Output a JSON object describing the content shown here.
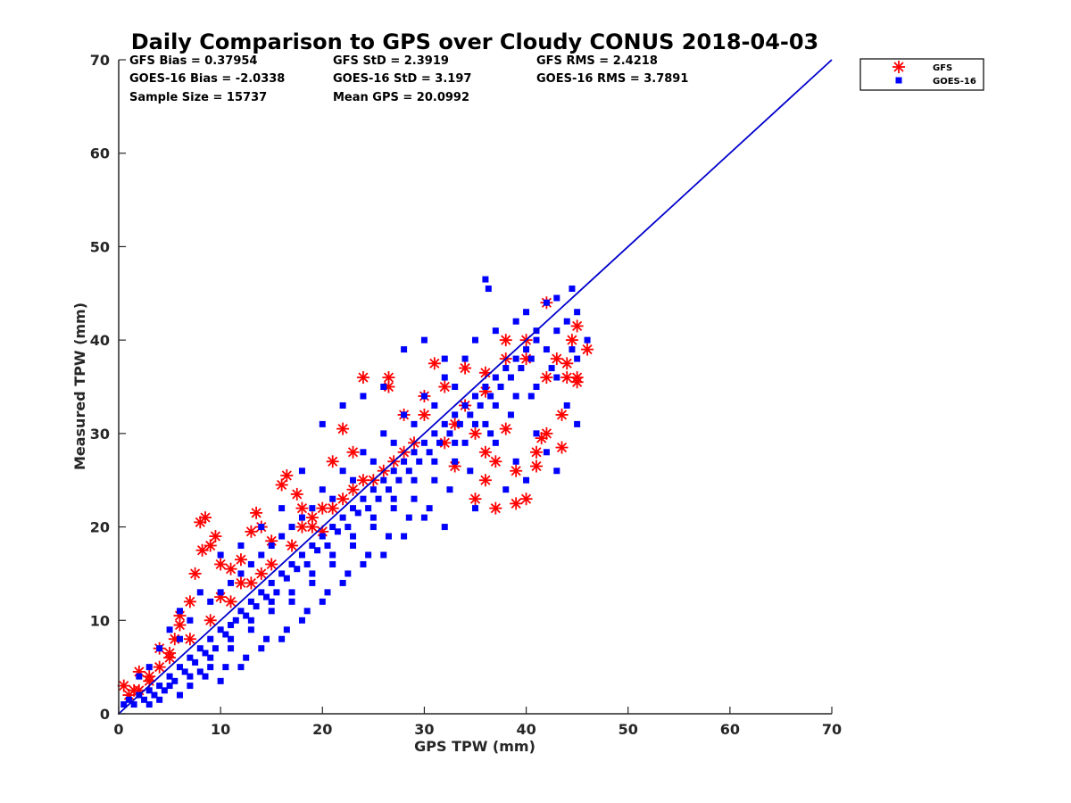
{
  "chart_data": {
    "type": "scatter",
    "title": "Daily Comparison to GPS over Cloudy CONUS 2018-04-03",
    "xlabel": "GPS TPW (mm)",
    "ylabel": "Measured TPW (mm)",
    "xlim": [
      0,
      70
    ],
    "ylim": [
      0,
      70
    ],
    "xticks": [
      "0",
      "10",
      "20",
      "30",
      "40",
      "50",
      "60",
      "70"
    ],
    "yticks": [
      "0",
      "10",
      "20",
      "30",
      "40",
      "50",
      "60",
      "70"
    ],
    "grid": false,
    "legend_position": "outside top-right",
    "stats": [
      [
        "GFS Bias = 0.37954",
        "GFS StD = 2.3919",
        "GFS RMS = 2.4218"
      ],
      [
        "GOES-16 Bias = -2.0338",
        "GOES-16 StD = 3.197",
        "GOES-16 RMS = 3.7891"
      ],
      [
        "Sample Size = 15737",
        "Mean GPS = 20.0992",
        ""
      ]
    ],
    "reference_line": {
      "x": [
        0,
        70
      ],
      "y": [
        0,
        70
      ],
      "color": "#0000cc"
    },
    "series": [
      {
        "name": "GFS",
        "marker": "asterisk",
        "color": "#ff0000",
        "points": [
          [
            0.5,
            3
          ],
          [
            1.5,
            2.5
          ],
          [
            2,
            4.5
          ],
          [
            3,
            3.5
          ],
          [
            4,
            5
          ],
          [
            5,
            6.5
          ],
          [
            5.5,
            8
          ],
          [
            6,
            9.5
          ],
          [
            7,
            12
          ],
          [
            7.5,
            15
          ],
          [
            8,
            20.5
          ],
          [
            8.5,
            21
          ],
          [
            9,
            18
          ],
          [
            8.2,
            17.5
          ],
          [
            9.5,
            19
          ],
          [
            10,
            16
          ],
          [
            11,
            15.5
          ],
          [
            12,
            16.5
          ],
          [
            13,
            19.5
          ],
          [
            13.5,
            21.5
          ],
          [
            14,
            20
          ],
          [
            15,
            18.5
          ],
          [
            16,
            24.5
          ],
          [
            16.5,
            25.5
          ],
          [
            17.5,
            23.5
          ],
          [
            18,
            22
          ],
          [
            19,
            21
          ],
          [
            20,
            19.5
          ],
          [
            22,
            30.5
          ],
          [
            21,
            27
          ],
          [
            23,
            28
          ],
          [
            24,
            36
          ],
          [
            26.5,
            36
          ],
          [
            26.5,
            35
          ],
          [
            28,
            32
          ],
          [
            31,
            37.5
          ],
          [
            30,
            34
          ],
          [
            32,
            29
          ],
          [
            34,
            33
          ],
          [
            35,
            30
          ],
          [
            36,
            28
          ],
          [
            36,
            25
          ],
          [
            37,
            22
          ],
          [
            38,
            30.5
          ],
          [
            39,
            26
          ],
          [
            40,
            23
          ],
          [
            41,
            28
          ],
          [
            41.5,
            29.5
          ],
          [
            42,
            30
          ],
          [
            43,
            38
          ],
          [
            44,
            36
          ],
          [
            44.5,
            40
          ],
          [
            45,
            36
          ],
          [
            45,
            35.5
          ],
          [
            46,
            39
          ],
          [
            45,
            41.5
          ],
          [
            43.5,
            28.5
          ],
          [
            43.5,
            32
          ],
          [
            42,
            44
          ],
          [
            40,
            40
          ],
          [
            38,
            38
          ],
          [
            36,
            34.5
          ],
          [
            33,
            31
          ],
          [
            29,
            29
          ],
          [
            27,
            27
          ],
          [
            25,
            25
          ],
          [
            23,
            24
          ],
          [
            21,
            22
          ],
          [
            19,
            20
          ],
          [
            17,
            18
          ],
          [
            15,
            16
          ],
          [
            13,
            14
          ],
          [
            11,
            12
          ],
          [
            9,
            10
          ],
          [
            7,
            8
          ],
          [
            5,
            6
          ],
          [
            3,
            4
          ],
          [
            2,
            2.5
          ],
          [
            1,
            2
          ],
          [
            6,
            10.5
          ],
          [
            4,
            7
          ],
          [
            10,
            12.5
          ],
          [
            12,
            14
          ],
          [
            14,
            15
          ],
          [
            18,
            20
          ],
          [
            20,
            22
          ],
          [
            22,
            23
          ],
          [
            24,
            25
          ],
          [
            26,
            26
          ],
          [
            28,
            28
          ],
          [
            30,
            32
          ],
          [
            32,
            35
          ],
          [
            34,
            37
          ],
          [
            36,
            36.5
          ],
          [
            38,
            40
          ],
          [
            40,
            38
          ],
          [
            42,
            36
          ],
          [
            44,
            37.5
          ],
          [
            37,
            27
          ],
          [
            33,
            26.5
          ],
          [
            35,
            23
          ],
          [
            39,
            22.5
          ],
          [
            41,
            26.5
          ]
        ]
      },
      {
        "name": "GOES-16",
        "marker": "square",
        "color": "#0000ff",
        "points": [
          [
            0.5,
            1
          ],
          [
            1,
            1.5
          ],
          [
            1.5,
            1
          ],
          [
            2,
            2
          ],
          [
            2.5,
            1.5
          ],
          [
            3,
            2.5
          ],
          [
            3.5,
            2
          ],
          [
            4,
            3
          ],
          [
            4.5,
            2.5
          ],
          [
            5,
            4
          ],
          [
            5.5,
            3.5
          ],
          [
            6,
            5
          ],
          [
            6.5,
            4.5
          ],
          [
            7,
            6
          ],
          [
            7.5,
            5.5
          ],
          [
            8,
            7
          ],
          [
            8.5,
            6.5
          ],
          [
            9,
            8
          ],
          [
            9.5,
            7
          ],
          [
            10,
            9
          ],
          [
            10.5,
            8.5
          ],
          [
            11,
            9.5
          ],
          [
            11.5,
            10
          ],
          [
            12,
            11
          ],
          [
            12.5,
            10.5
          ],
          [
            13,
            12
          ],
          [
            13.5,
            11.5
          ],
          [
            14,
            13
          ],
          [
            14.5,
            12.5
          ],
          [
            15,
            14
          ],
          [
            15.5,
            13
          ],
          [
            16,
            15
          ],
          [
            16.5,
            14.5
          ],
          [
            17,
            16
          ],
          [
            17.5,
            15.5
          ],
          [
            18,
            17
          ],
          [
            18.5,
            16
          ],
          [
            19,
            18
          ],
          [
            19.5,
            17.5
          ],
          [
            20,
            19
          ],
          [
            20.5,
            18
          ],
          [
            21,
            20
          ],
          [
            21.5,
            19.5
          ],
          [
            22,
            21
          ],
          [
            22.5,
            20
          ],
          [
            23,
            22
          ],
          [
            23.5,
            21.5
          ],
          [
            24,
            23
          ],
          [
            24.5,
            22
          ],
          [
            25,
            24
          ],
          [
            25.5,
            23
          ],
          [
            26,
            25
          ],
          [
            26.5,
            24
          ],
          [
            27,
            26
          ],
          [
            27.5,
            25
          ],
          [
            28,
            27
          ],
          [
            28.5,
            26
          ],
          [
            29,
            28
          ],
          [
            29.5,
            27
          ],
          [
            30,
            29
          ],
          [
            30.5,
            28
          ],
          [
            31,
            30
          ],
          [
            31.5,
            29
          ],
          [
            32,
            31
          ],
          [
            32.5,
            30
          ],
          [
            33,
            32
          ],
          [
            33.5,
            31
          ],
          [
            34,
            33
          ],
          [
            34.5,
            32
          ],
          [
            35,
            34
          ],
          [
            35.5,
            33
          ],
          [
            36,
            35
          ],
          [
            36.5,
            34
          ],
          [
            37,
            36
          ],
          [
            37.5,
            35
          ],
          [
            38,
            37
          ],
          [
            38.5,
            36
          ],
          [
            39,
            38
          ],
          [
            39.5,
            37
          ],
          [
            40,
            39
          ],
          [
            40.5,
            38
          ],
          [
            41,
            40
          ],
          [
            42,
            39
          ],
          [
            43,
            41
          ],
          [
            44,
            42
          ],
          [
            44.5,
            45.5
          ],
          [
            36,
            46.5
          ],
          [
            36.3,
            45.5
          ],
          [
            40,
            43
          ],
          [
            42,
            44
          ],
          [
            43,
            44.5
          ],
          [
            45,
            43
          ],
          [
            30,
            40
          ],
          [
            28,
            39
          ],
          [
            32,
            38
          ],
          [
            26,
            35
          ],
          [
            24,
            34
          ],
          [
            20,
            31
          ],
          [
            22,
            33
          ],
          [
            18,
            26
          ],
          [
            16,
            22
          ],
          [
            12,
            18
          ],
          [
            10,
            17
          ],
          [
            14,
            20
          ],
          [
            8,
            13
          ],
          [
            6,
            11
          ],
          [
            5,
            9
          ],
          [
            4,
            7
          ],
          [
            3,
            5
          ],
          [
            2,
            4
          ],
          [
            8.5,
            4
          ],
          [
            10,
            3.5
          ],
          [
            12,
            5
          ],
          [
            14,
            7
          ],
          [
            16,
            8
          ],
          [
            18,
            10
          ],
          [
            20,
            12
          ],
          [
            22,
            14
          ],
          [
            24,
            16
          ],
          [
            26,
            17
          ],
          [
            28,
            19
          ],
          [
            30,
            21
          ],
          [
            32,
            20
          ],
          [
            35,
            22
          ],
          [
            38,
            24
          ],
          [
            40,
            25
          ],
          [
            43,
            26
          ],
          [
            45,
            31
          ],
          [
            44,
            33
          ],
          [
            42,
            28
          ],
          [
            41,
            30
          ],
          [
            39,
            27
          ],
          [
            37,
            29
          ],
          [
            36,
            31
          ],
          [
            34,
            29
          ],
          [
            33,
            27
          ],
          [
            31,
            25
          ],
          [
            29,
            23
          ],
          [
            27,
            22
          ],
          [
            25,
            20
          ],
          [
            23,
            18
          ],
          [
            21,
            16
          ],
          [
            19,
            14
          ],
          [
            17,
            12
          ],
          [
            15,
            11
          ],
          [
            13,
            9
          ],
          [
            11,
            7
          ],
          [
            9,
            5
          ],
          [
            7,
            3
          ],
          [
            6,
            2
          ],
          [
            4,
            1.5
          ],
          [
            3,
            1
          ],
          [
            9,
            6
          ],
          [
            11,
            8
          ],
          [
            13,
            10
          ],
          [
            15,
            12
          ],
          [
            17,
            13
          ],
          [
            19,
            15
          ],
          [
            21,
            17
          ],
          [
            23,
            19
          ],
          [
            25,
            21
          ],
          [
            27,
            23
          ],
          [
            29,
            25
          ],
          [
            31,
            27
          ],
          [
            33,
            29
          ],
          [
            35,
            31
          ],
          [
            37,
            33
          ],
          [
            39,
            34
          ],
          [
            41,
            35
          ],
          [
            43,
            36
          ],
          [
            45,
            38
          ],
          [
            46,
            40
          ],
          [
            44.5,
            39
          ],
          [
            42.5,
            37
          ],
          [
            40.5,
            34
          ],
          [
            38.5,
            32
          ],
          [
            36.5,
            30
          ],
          [
            34.5,
            26
          ],
          [
            32.5,
            24
          ],
          [
            30.5,
            22
          ],
          [
            28.5,
            21
          ],
          [
            26.5,
            19
          ],
          [
            24.5,
            17
          ],
          [
            22.5,
            15
          ],
          [
            20.5,
            13
          ],
          [
            18.5,
            11
          ],
          [
            16.5,
            9
          ],
          [
            14.5,
            8
          ],
          [
            12.5,
            6
          ],
          [
            10.5,
            5
          ],
          [
            8,
            4.5
          ],
          [
            7,
            4
          ],
          [
            5,
            3
          ],
          [
            22,
            26
          ],
          [
            24,
            28
          ],
          [
            26,
            30
          ],
          [
            28,
            32
          ],
          [
            30,
            34
          ],
          [
            32,
            36
          ],
          [
            34,
            38
          ],
          [
            19,
            22
          ],
          [
            17,
            20
          ],
          [
            15,
            18
          ],
          [
            13,
            16
          ],
          [
            11,
            14
          ],
          [
            9,
            12
          ],
          [
            7,
            10
          ],
          [
            6,
            8
          ],
          [
            20,
            24
          ],
          [
            18,
            21
          ],
          [
            16,
            19
          ],
          [
            14,
            17
          ],
          [
            12,
            15
          ],
          [
            10,
            13
          ],
          [
            35,
            40
          ],
          [
            37,
            41
          ],
          [
            39,
            42
          ],
          [
            41,
            41
          ],
          [
            33,
            35
          ],
          [
            31,
            33
          ],
          [
            29,
            31
          ],
          [
            27,
            29
          ],
          [
            25,
            27
          ],
          [
            23,
            25
          ],
          [
            21,
            23
          ]
        ]
      }
    ]
  }
}
